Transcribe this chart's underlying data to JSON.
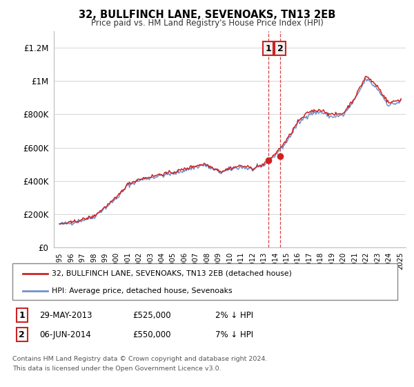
{
  "title": "32, BULLFINCH LANE, SEVENOAKS, TN13 2EB",
  "subtitle": "Price paid vs. HM Land Registry's House Price Index (HPI)",
  "legend_line1": "32, BULLFINCH LANE, SEVENOAKS, TN13 2EB (detached house)",
  "legend_line2": "HPI: Average price, detached house, Sevenoaks",
  "transaction1_label": "1",
  "transaction1_date": "29-MAY-2013",
  "transaction1_price": "£525,000",
  "transaction1_hpi": "2% ↓ HPI",
  "transaction1_year": 2013.38,
  "transaction1_value": 525000,
  "transaction2_label": "2",
  "transaction2_date": "06-JUN-2014",
  "transaction2_price": "£550,000",
  "transaction2_hpi": "7% ↓ HPI",
  "transaction2_year": 2014.45,
  "transaction2_value": 550000,
  "footnote_line1": "Contains HM Land Registry data © Crown copyright and database right 2024.",
  "footnote_line2": "This data is licensed under the Open Government Licence v3.0.",
  "hpi_color": "#7090c8",
  "property_color": "#cc2222",
  "ylim_max": 1300000,
  "xlim_start": 1994.5,
  "xlim_end": 2025.5,
  "yticks": [
    0,
    200000,
    400000,
    600000,
    800000,
    1000000,
    1200000
  ],
  "ytick_labels": [
    "£0",
    "£200K",
    "£400K",
    "£600K",
    "£800K",
    "£1M",
    "£1.2M"
  ]
}
